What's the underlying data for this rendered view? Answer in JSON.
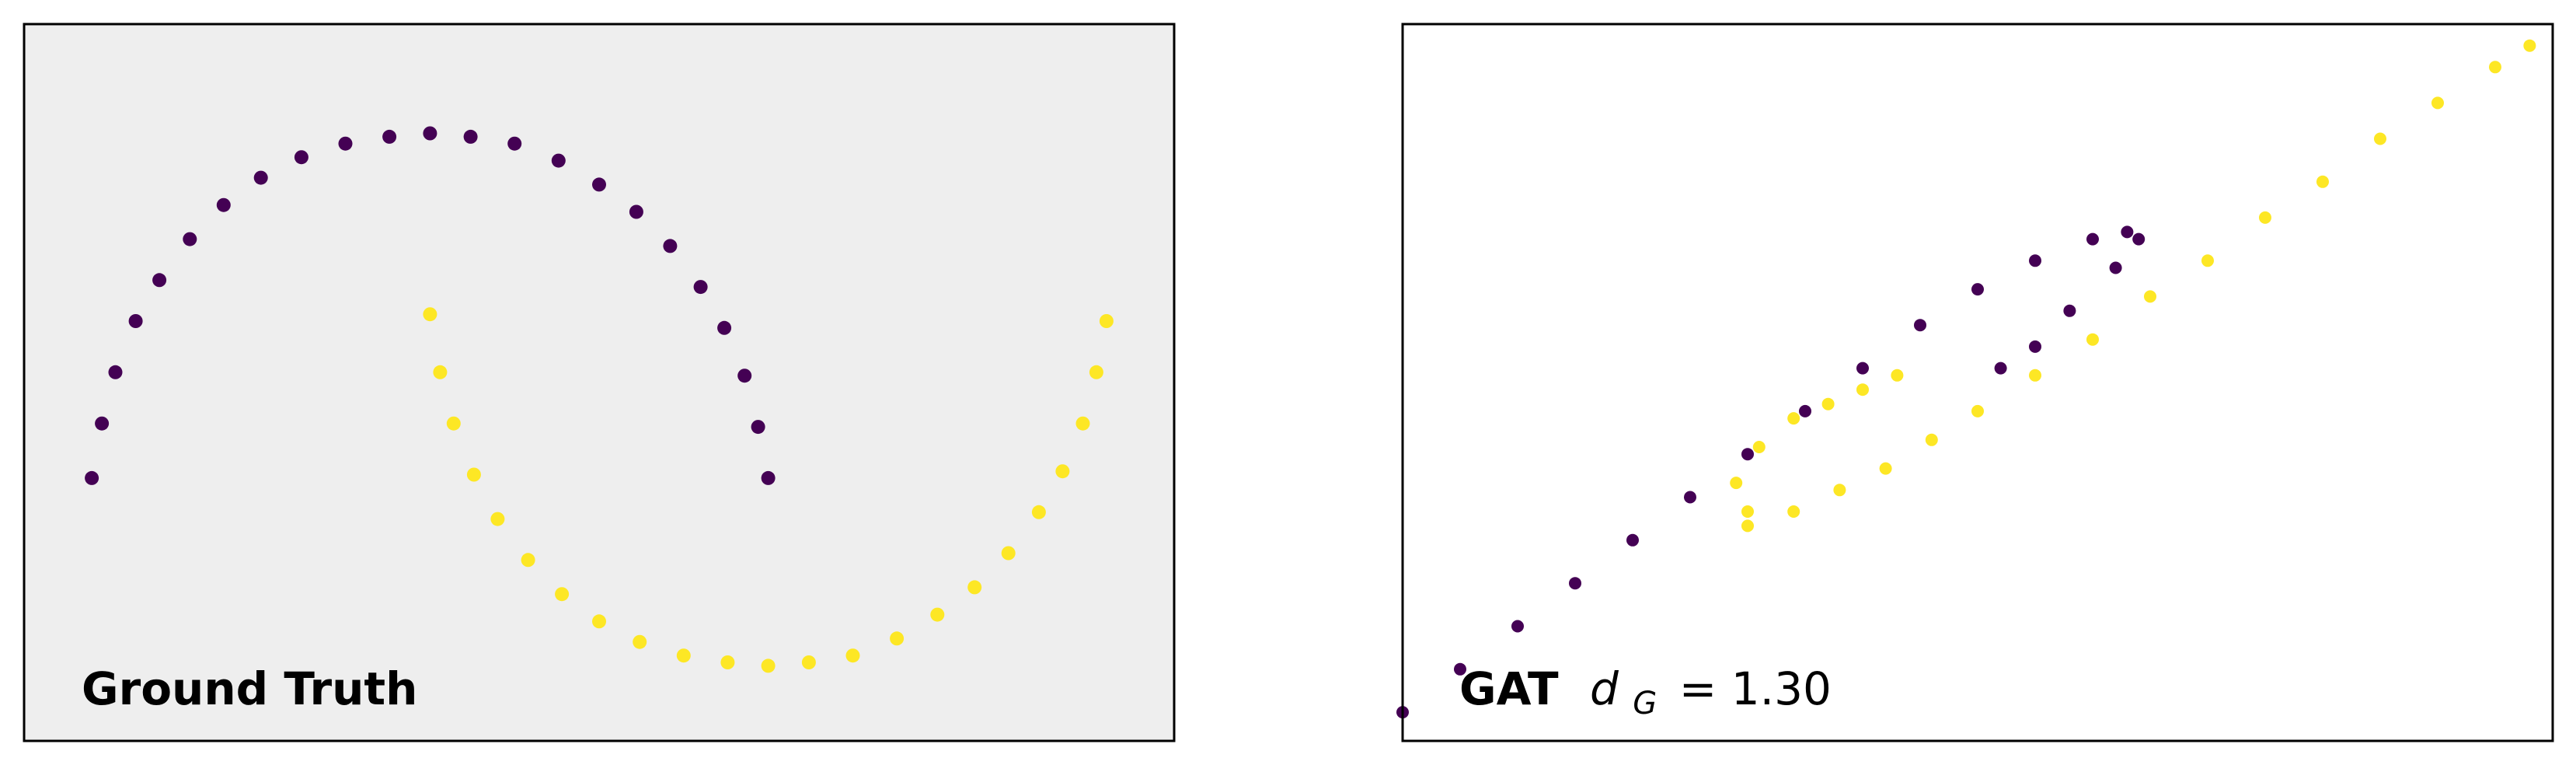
{
  "colors": {
    "class_0": "#440154",
    "class_1": "#fde725",
    "left_background": "#eeeeee",
    "right_background": "#ffffff"
  },
  "chart_data": [
    {
      "type": "scatter",
      "panel": "left",
      "label": "Ground Truth",
      "grid": false,
      "axes_visible": false,
      "xlim": [
        -1.2,
        2.2
      ],
      "ylim": [
        -0.75,
        1.35
      ],
      "classes": [
        {
          "class": 0,
          "color": "#440154",
          "description_points": "upper moon (outer arc)",
          "points": [
            [
              -1.0,
              0.02
            ],
            [
              -0.97,
              0.18
            ],
            [
              -0.93,
              0.33
            ],
            [
              -0.87,
              0.48
            ],
            [
              -0.8,
              0.6
            ],
            [
              -0.71,
              0.72
            ],
            [
              -0.61,
              0.82
            ],
            [
              -0.5,
              0.9
            ],
            [
              -0.38,
              0.96
            ],
            [
              -0.25,
              1.0
            ],
            [
              -0.12,
              1.02
            ],
            [
              0.0,
              1.03
            ],
            [
              0.12,
              1.02
            ],
            [
              0.25,
              1.0
            ],
            [
              0.38,
              0.95
            ],
            [
              0.5,
              0.88
            ],
            [
              0.61,
              0.8
            ],
            [
              0.71,
              0.7
            ],
            [
              0.8,
              0.58
            ],
            [
              0.87,
              0.46
            ],
            [
              0.93,
              0.32
            ],
            [
              0.97,
              0.17
            ],
            [
              1.0,
              0.02
            ]
          ]
        },
        {
          "class": 1,
          "color": "#fde725",
          "description_points": "lower moon (inner arc)",
          "points": [
            [
              0.0,
              0.5
            ],
            [
              0.03,
              0.33
            ],
            [
              0.07,
              0.18
            ],
            [
              0.13,
              0.03
            ],
            [
              0.2,
              -0.1
            ],
            [
              0.29,
              -0.22
            ],
            [
              0.39,
              -0.32
            ],
            [
              0.5,
              -0.4
            ],
            [
              0.62,
              -0.46
            ],
            [
              0.75,
              -0.5
            ],
            [
              0.88,
              -0.52
            ],
            [
              1.0,
              -0.53
            ],
            [
              1.12,
              -0.52
            ],
            [
              1.25,
              -0.5
            ],
            [
              1.38,
              -0.45
            ],
            [
              1.5,
              -0.38
            ],
            [
              1.61,
              -0.3
            ],
            [
              1.71,
              -0.2
            ],
            [
              1.8,
              -0.08
            ],
            [
              1.87,
              0.04
            ],
            [
              1.93,
              0.18
            ],
            [
              1.97,
              0.33
            ],
            [
              2.0,
              0.48
            ]
          ]
        }
      ]
    },
    {
      "type": "scatter",
      "panel": "right",
      "label": "GAT",
      "metric_symbol": "d",
      "metric_subscript": "G",
      "metric_value": "= 1.30",
      "grid": false,
      "axes_visible": false,
      "xlim": [
        0,
        1
      ],
      "ylim": [
        0,
        1
      ],
      "classes": [
        {
          "class": 0,
          "color": "#440154",
          "description_points": "long thin diagonal curve with a hooked upper end",
          "points": [
            [
              0.0,
              0.04
            ],
            [
              0.05,
              0.1
            ],
            [
              0.1,
              0.16
            ],
            [
              0.15,
              0.22
            ],
            [
              0.2,
              0.28
            ],
            [
              0.25,
              0.34
            ],
            [
              0.3,
              0.4
            ],
            [
              0.35,
              0.46
            ],
            [
              0.4,
              0.52
            ],
            [
              0.45,
              0.58
            ],
            [
              0.5,
              0.63
            ],
            [
              0.55,
              0.67
            ],
            [
              0.6,
              0.7
            ],
            [
              0.63,
              0.71
            ],
            [
              0.64,
              0.7
            ],
            [
              0.62,
              0.66
            ],
            [
              0.58,
              0.6
            ],
            [
              0.55,
              0.55
            ],
            [
              0.52,
              0.52
            ]
          ]
        },
        {
          "class": 1,
          "color": "#fde725",
          "description_points": "long diagonal line with a small loop near the center",
          "points": [
            [
              0.3,
              0.3
            ],
            [
              0.34,
              0.32
            ],
            [
              0.38,
              0.35
            ],
            [
              0.42,
              0.38
            ],
            [
              0.46,
              0.42
            ],
            [
              0.5,
              0.46
            ],
            [
              0.55,
              0.51
            ],
            [
              0.6,
              0.56
            ],
            [
              0.65,
              0.62
            ],
            [
              0.7,
              0.67
            ],
            [
              0.75,
              0.73
            ],
            [
              0.8,
              0.78
            ],
            [
              0.85,
              0.84
            ],
            [
              0.9,
              0.89
            ],
            [
              0.95,
              0.94
            ],
            [
              0.98,
              0.97
            ],
            [
              0.3,
              0.32
            ],
            [
              0.29,
              0.36
            ],
            [
              0.31,
              0.41
            ],
            [
              0.34,
              0.45
            ],
            [
              0.37,
              0.47
            ],
            [
              0.4,
              0.49
            ],
            [
              0.43,
              0.51
            ]
          ]
        }
      ]
    }
  ]
}
